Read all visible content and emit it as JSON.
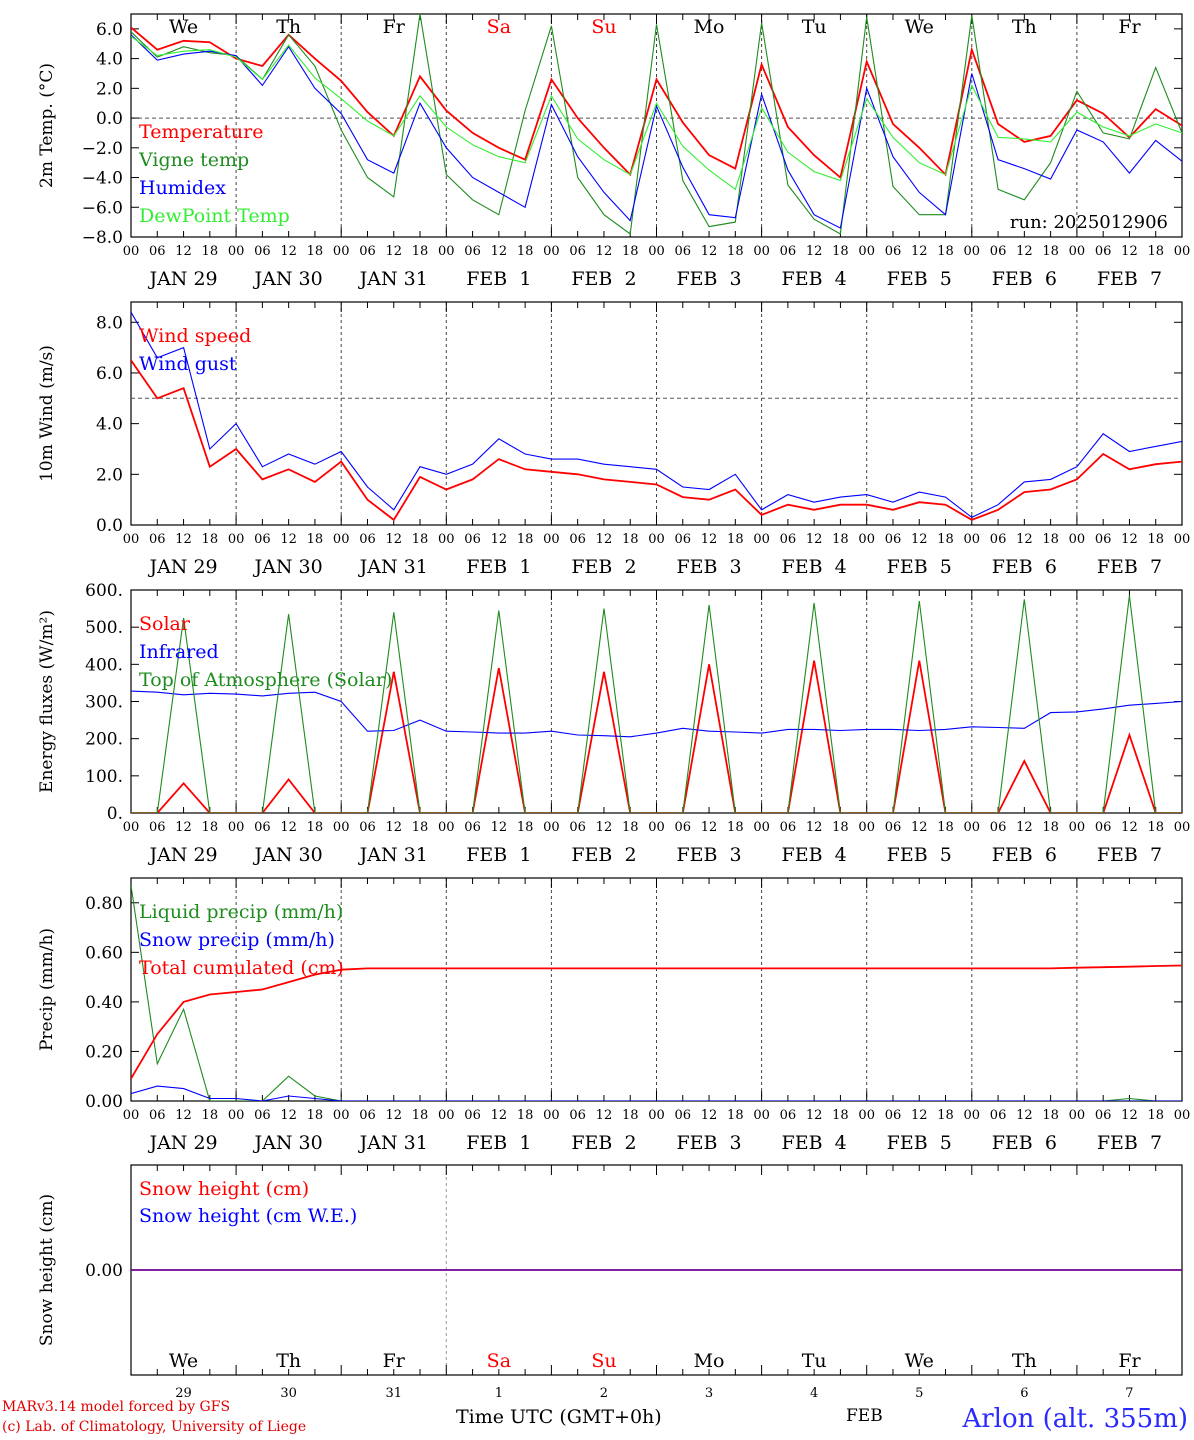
{
  "colors": {
    "red": "#ff0000",
    "green": "#1e8c1e",
    "blue": "#0000ff",
    "lightgreen": "#33ee33",
    "grid": "#444444"
  },
  "time_axis": {
    "days": [
      "JAN 29",
      "JAN 30",
      "JAN 31",
      "FEB  1",
      "FEB  2",
      "FEB  3",
      "FEB  4",
      "FEB  5",
      "FEB  6",
      "FEB  7"
    ],
    "hour_ticks": [
      "00",
      "06",
      "12",
      "18"
    ],
    "end_tick": "00",
    "weekdays": [
      "We",
      "Th",
      "Fr",
      "Sa",
      "Su",
      "Mo",
      "Tu",
      "We",
      "Th",
      "Fr"
    ],
    "weekend_flags": [
      false,
      false,
      false,
      true,
      true,
      false,
      false,
      false,
      false,
      false
    ],
    "day_numbers": [
      "29",
      "30",
      "31",
      "1",
      "2",
      "3",
      "4",
      "5",
      "6",
      "7"
    ]
  },
  "chart_data": [
    {
      "type": "line",
      "ylabel": "2m Temp. (°C)",
      "ylim": [
        -8,
        7
      ],
      "yticks": [
        "6.0",
        "4.0",
        "2.0",
        "0.0",
        "−2.0",
        "−4.0",
        "−6.0",
        "−8.0"
      ],
      "ytick_values": [
        6,
        4,
        2,
        0,
        -2,
        -4,
        -6,
        -8
      ],
      "ref_line": 0,
      "annotation": "run: 2025012906",
      "x_hours": [
        0,
        6,
        12,
        18,
        24,
        30,
        36,
        42,
        48,
        54,
        60,
        66,
        72,
        78,
        84,
        90,
        96,
        102,
        108,
        114,
        120,
        126,
        132,
        138,
        144,
        150,
        156,
        162,
        168,
        174,
        180,
        186,
        192,
        198,
        204,
        210,
        216,
        222,
        228,
        234,
        240
      ],
      "series": [
        {
          "name": "Temperature",
          "color": "red",
          "values": [
            6.1,
            4.6,
            5.2,
            5.1,
            4.0,
            3.5,
            5.6,
            4.0,
            2.5,
            0.4,
            -1.2,
            2.8,
            0.5,
            -1.0,
            -2.0,
            -2.8,
            2.6,
            0.0,
            -2.0,
            -3.8,
            2.6,
            -0.3,
            -2.5,
            -3.4,
            3.6,
            -0.6,
            -2.5,
            -4.0,
            3.8,
            -0.4,
            -2.0,
            -3.8,
            4.6,
            -0.4,
            -1.6,
            -1.2,
            1.2,
            0.3,
            -1.3,
            0.6,
            -0.5
          ]
        },
        {
          "name": "Vigne temp",
          "color": "green",
          "values": [
            5.8,
            4.1,
            4.8,
            4.4,
            4.2,
            2.6,
            5.6,
            3.5,
            -0.8,
            -4.0,
            -5.3,
            7.0,
            -3.8,
            -5.5,
            -6.5,
            0.5,
            6.2,
            -4.0,
            -6.5,
            -7.8,
            6.3,
            -4.2,
            -7.3,
            -7.0,
            6.4,
            -4.5,
            -6.8,
            -7.8,
            6.8,
            -4.6,
            -6.5,
            -6.5,
            6.9,
            -4.8,
            -5.5,
            -3.0,
            1.8,
            -1.0,
            -1.4,
            3.4,
            -1.0
          ]
        },
        {
          "name": "Humidex",
          "color": "blue",
          "values": [
            5.6,
            3.9,
            4.3,
            4.5,
            4.2,
            2.2,
            4.8,
            2.0,
            0.3,
            -2.8,
            -3.7,
            1.0,
            -2.0,
            -4.0,
            -5.0,
            -6.0,
            0.9,
            -2.6,
            -5.0,
            -6.9,
            0.8,
            -3.3,
            -6.5,
            -6.7,
            1.6,
            -3.5,
            -6.5,
            -7.4,
            2.0,
            -2.6,
            -5.0,
            -6.5,
            3.0,
            -2.8,
            -3.4,
            -4.1,
            -0.8,
            -1.6,
            -3.7,
            -1.5,
            -2.9
          ]
        },
        {
          "name": "DewPoint Temp",
          "color": "lightgreen",
          "values": [
            5.5,
            4.2,
            4.5,
            4.6,
            4.1,
            2.6,
            4.9,
            2.7,
            1.3,
            -0.2,
            -1.2,
            1.5,
            -0.6,
            -1.8,
            -2.6,
            -3.0,
            1.5,
            -1.4,
            -2.8,
            -3.8,
            1.0,
            -1.9,
            -3.5,
            -4.8,
            0.7,
            -2.3,
            -3.6,
            -4.2,
            1.3,
            -1.3,
            -3.0,
            -3.8,
            2.2,
            -1.3,
            -1.4,
            -1.6,
            0.4,
            -0.6,
            -1.2,
            -0.4,
            -1.0
          ]
        }
      ]
    },
    {
      "type": "line",
      "ylabel": "10m Wind (m/s)",
      "ylim": [
        0,
        8.8
      ],
      "yticks": [
        "8.0",
        "6.0",
        "4.0",
        "2.0",
        "0.0"
      ],
      "ytick_values": [
        8,
        6,
        4,
        2,
        0
      ],
      "ref_line": 5,
      "x_hours": [
        0,
        6,
        12,
        18,
        24,
        30,
        36,
        42,
        48,
        54,
        60,
        66,
        72,
        78,
        84,
        90,
        96,
        102,
        108,
        114,
        120,
        126,
        132,
        138,
        144,
        150,
        156,
        162,
        168,
        174,
        180,
        186,
        192,
        198,
        204,
        210,
        216,
        222,
        228,
        234,
        240
      ],
      "series": [
        {
          "name": "Wind speed",
          "color": "red",
          "values": [
            6.5,
            5.0,
            5.4,
            2.3,
            3.0,
            1.8,
            2.2,
            1.7,
            2.5,
            1.0,
            0.2,
            1.9,
            1.4,
            1.8,
            2.6,
            2.2,
            2.1,
            2.0,
            1.8,
            1.7,
            1.6,
            1.1,
            1.0,
            1.4,
            0.4,
            0.8,
            0.6,
            0.8,
            0.8,
            0.6,
            0.9,
            0.8,
            0.2,
            0.6,
            1.3,
            1.4,
            1.8,
            2.8,
            2.2,
            2.4,
            2.5
          ]
        },
        {
          "name": "Wind gust",
          "color": "blue",
          "values": [
            8.4,
            6.6,
            7.0,
            3.0,
            4.0,
            2.3,
            2.8,
            2.4,
            2.9,
            1.5,
            0.6,
            2.3,
            2.0,
            2.4,
            3.4,
            2.8,
            2.6,
            2.6,
            2.4,
            2.3,
            2.2,
            1.5,
            1.4,
            2.0,
            0.6,
            1.2,
            0.9,
            1.1,
            1.2,
            0.9,
            1.3,
            1.1,
            0.3,
            0.8,
            1.7,
            1.8,
            2.3,
            3.6,
            2.9,
            3.1,
            3.3
          ]
        }
      ]
    },
    {
      "type": "line",
      "ylabel": "Energy fluxes (W/m²)",
      "ylim": [
        0,
        600
      ],
      "yticks": [
        "600.",
        "500.",
        "400.",
        "300.",
        "200.",
        "100.",
        "0."
      ],
      "ytick_values": [
        600,
        500,
        400,
        300,
        200,
        100,
        0
      ],
      "ref_line": null,
      "x_hours": [
        0,
        6,
        12,
        18,
        24,
        30,
        36,
        42,
        48,
        54,
        60,
        66,
        72,
        78,
        84,
        90,
        96,
        102,
        108,
        114,
        120,
        126,
        132,
        138,
        144,
        150,
        156,
        162,
        168,
        174,
        180,
        186,
        192,
        198,
        204,
        210,
        216,
        222,
        228,
        234,
        240
      ],
      "series": [
        {
          "name": "Solar",
          "color": "red",
          "values": [
            0,
            0,
            80,
            0,
            0,
            0,
            90,
            0,
            0,
            0,
            380,
            0,
            0,
            0,
            390,
            0,
            0,
            0,
            380,
            0,
            0,
            0,
            400,
            0,
            0,
            0,
            410,
            0,
            0,
            0,
            410,
            0,
            0,
            0,
            140,
            0,
            0,
            0,
            210,
            0,
            0
          ]
        },
        {
          "name": "Infrared",
          "color": "blue",
          "values": [
            328,
            325,
            318,
            322,
            320,
            315,
            322,
            325,
            300,
            220,
            222,
            250,
            220,
            218,
            215,
            215,
            220,
            210,
            208,
            205,
            215,
            228,
            220,
            218,
            215,
            225,
            225,
            222,
            225,
            225,
            222,
            225,
            232,
            230,
            228,
            270,
            272,
            280,
            290,
            295,
            300
          ]
        },
        {
          "name": "Top of Atmosphere (Solar)",
          "color": "green",
          "values": [
            0,
            0,
            525,
            0,
            0,
            0,
            535,
            0,
            0,
            0,
            540,
            0,
            0,
            0,
            545,
            0,
            0,
            0,
            550,
            0,
            0,
            0,
            560,
            0,
            0,
            0,
            565,
            0,
            0,
            0,
            570,
            0,
            0,
            0,
            575,
            0,
            0,
            0,
            585,
            0,
            0
          ]
        }
      ]
    },
    {
      "type": "line",
      "ylabel": "Precip (mm/h)",
      "ylim": [
        0,
        0.9
      ],
      "yticks": [
        "0.80",
        "0.60",
        "0.40",
        "0.20",
        "0.00"
      ],
      "ytick_values": [
        0.8,
        0.6,
        0.4,
        0.2,
        0
      ],
      "ref_line": null,
      "x_hours": [
        0,
        6,
        12,
        18,
        24,
        30,
        36,
        42,
        48,
        54,
        60,
        66,
        72,
        78,
        84,
        90,
        96,
        102,
        108,
        114,
        120,
        126,
        132,
        138,
        144,
        150,
        156,
        162,
        168,
        174,
        180,
        186,
        192,
        198,
        204,
        210,
        216,
        222,
        228,
        234,
        240
      ],
      "series": [
        {
          "name": "Liquid precip (mm/h)",
          "color": "green",
          "values": [
            0.87,
            0.15,
            0.37,
            0.0,
            0.0,
            0.0,
            0.1,
            0.02,
            0.0,
            0.0,
            0.0,
            0.0,
            0.0,
            0.0,
            0.0,
            0.0,
            0.0,
            0.0,
            0.0,
            0.0,
            0.0,
            0.0,
            0.0,
            0.0,
            0.0,
            0.0,
            0.0,
            0.0,
            0.0,
            0.0,
            0.0,
            0.0,
            0.0,
            0.0,
            0.0,
            0.0,
            0.0,
            0.0,
            0.01,
            0.0,
            0.0
          ]
        },
        {
          "name": "Snow precip (mm/h)",
          "color": "blue",
          "values": [
            0.03,
            0.06,
            0.05,
            0.01,
            0.01,
            0.0,
            0.02,
            0.01,
            0.0,
            0.0,
            0.0,
            0.0,
            0.0,
            0.0,
            0.0,
            0.0,
            0.0,
            0.0,
            0.0,
            0.0,
            0.0,
            0.0,
            0.0,
            0.0,
            0.0,
            0.0,
            0.0,
            0.0,
            0.0,
            0.0,
            0.0,
            0.0,
            0.0,
            0.0,
            0.0,
            0.0,
            0.0,
            0.0,
            0.0,
            0.0,
            0.0
          ]
        },
        {
          "name": "Total cumulated (cm)",
          "color": "red",
          "values": [
            0.09,
            0.27,
            0.4,
            0.43,
            0.44,
            0.45,
            0.48,
            0.51,
            0.53,
            0.535,
            0.535,
            0.535,
            0.535,
            0.535,
            0.535,
            0.535,
            0.535,
            0.535,
            0.535,
            0.535,
            0.535,
            0.535,
            0.535,
            0.535,
            0.535,
            0.535,
            0.535,
            0.535,
            0.535,
            0.535,
            0.535,
            0.535,
            0.535,
            0.535,
            0.535,
            0.535,
            0.538,
            0.54,
            0.542,
            0.545,
            0.547
          ]
        }
      ]
    },
    {
      "type": "line",
      "ylabel": "Snow height (cm)",
      "ylim": [
        -1,
        1
      ],
      "yticks": [
        "0.00"
      ],
      "ytick_values": [
        0
      ],
      "ref_line": null,
      "x_hours": [
        0,
        240
      ],
      "series": [
        {
          "name": "Snow height (cm)",
          "color": "red",
          "values": [
            0,
            0
          ]
        },
        {
          "name": "Snow height (cm W.E.)",
          "color": "blue",
          "values": [
            0,
            0
          ]
        }
      ]
    }
  ],
  "footer": {
    "credit_line1": "MARv3.14 model forced by GFS",
    "credit_line2": "(c) Lab. of Climatology, University of Liege",
    "xlabel": "Time UTC (GMT+0h)",
    "month": "FEB",
    "station": "Arlon (alt. 355m)"
  }
}
